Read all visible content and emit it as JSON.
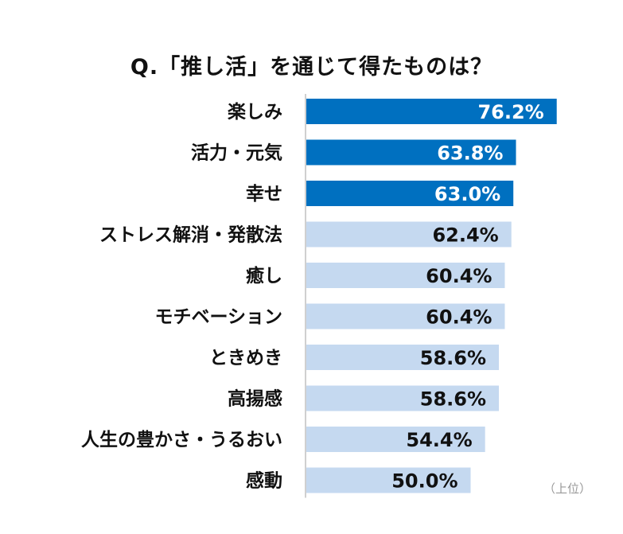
{
  "chart_data": {
    "type": "bar",
    "orientation": "horizontal",
    "title": "Q.「推し活」を通じて得たものは？",
    "categories": [
      "楽しみ",
      "活力・元気",
      "幸せ",
      "ストレス解消・発散法",
      "癒し",
      "モチベーション",
      "ときめき",
      "高揚感",
      "人生の豊かさ・うるおい",
      "感動"
    ],
    "values": [
      76.2,
      63.8,
      63.0,
      62.4,
      60.4,
      60.4,
      58.6,
      58.6,
      54.4,
      50.0
    ],
    "value_labels": [
      "76.2%",
      "63.8%",
      "63.0%",
      "62.4%",
      "60.4%",
      "60.4%",
      "58.6%",
      "58.6%",
      "54.4%",
      "50.0%"
    ],
    "highlight_top_n": 3,
    "unit": "%",
    "xlabel": "",
    "ylabel": "",
    "xlim": [
      0,
      100
    ],
    "grid": false,
    "legend": null,
    "annotation": "（上位）",
    "colors": {
      "highlight": "#0070C0",
      "normal": "#C5D9F0",
      "highlight_text": "#ffffff",
      "normal_text": "#111111",
      "axis": "#d0d0d0"
    }
  }
}
